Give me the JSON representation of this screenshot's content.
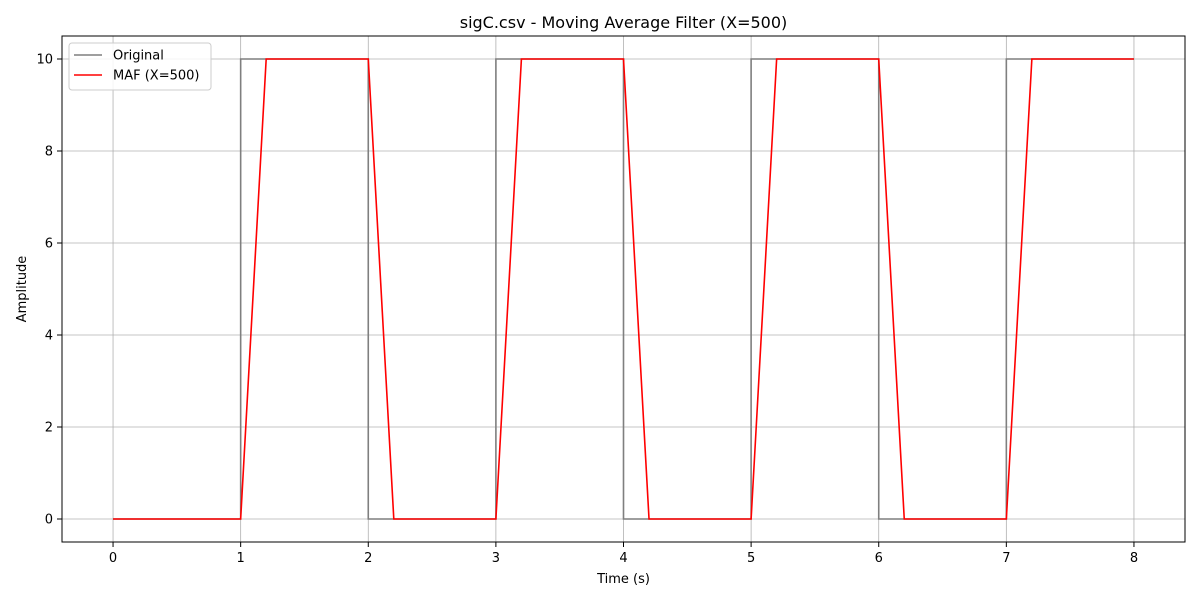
{
  "chart_data": {
    "type": "line",
    "title": "sigC.csv - Moving Average Filter (X=500)",
    "xlabel": "Time (s)",
    "ylabel": "Amplitude",
    "xlim": [
      -0.4,
      8.4
    ],
    "ylim": [
      -0.5,
      10.5
    ],
    "xticks": [
      0,
      1,
      2,
      3,
      4,
      5,
      6,
      7,
      8
    ],
    "yticks": [
      0,
      2,
      4,
      6,
      8,
      10
    ],
    "grid": true,
    "legend_position": "top-left",
    "series": [
      {
        "name": "Original",
        "color": "#7f7f7f",
        "x": [
          0,
          1,
          1,
          2,
          2,
          3,
          3,
          4,
          4,
          5,
          5,
          6,
          6,
          7,
          7,
          8
        ],
        "y": [
          0,
          0,
          10,
          10,
          0,
          0,
          10,
          10,
          0,
          0,
          10,
          10,
          0,
          0,
          10,
          10
        ]
      },
      {
        "name": "MAF (X=500)",
        "color": "#ff0000",
        "x": [
          0,
          1,
          1.2,
          2,
          2.2,
          3,
          3.2,
          4,
          4.2,
          5,
          5.2,
          6,
          6.2,
          7,
          7.2,
          8
        ],
        "y": [
          0,
          0,
          10,
          10,
          0,
          0,
          10,
          10,
          0,
          0,
          10,
          10,
          0,
          0,
          10,
          10
        ]
      }
    ]
  }
}
